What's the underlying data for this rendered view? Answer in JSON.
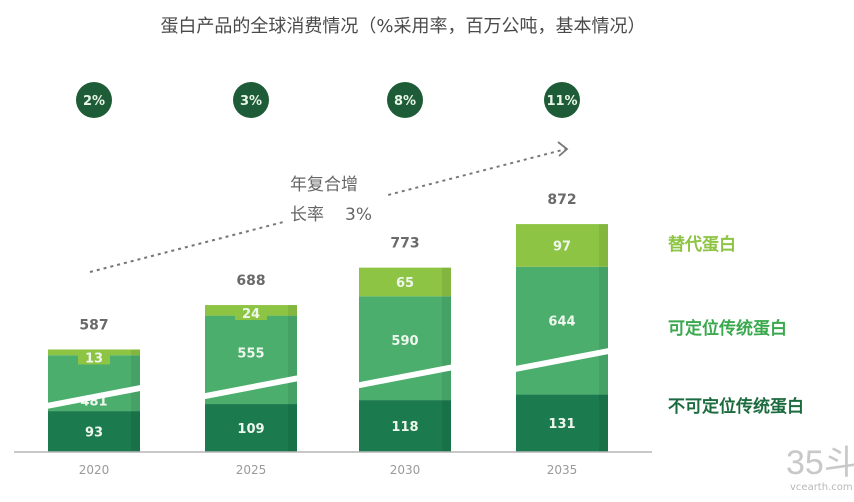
{
  "chart_data": {
    "type": "bar",
    "stacked": true,
    "title": "蛋白产品的全球消费情况（%采用率，百万公吨，基本情况）",
    "categories": [
      "2020",
      "2025",
      "2030",
      "2035"
    ],
    "series": [
      {
        "name": "不可定位传统蛋白",
        "values": [
          93,
          109,
          118,
          131
        ],
        "color": "#1b7a4e"
      },
      {
        "name": "可定位传统蛋白",
        "values": [
          481,
          555,
          590,
          644
        ],
        "color": "#4bae6d"
      },
      {
        "name": "替代蛋白",
        "values": [
          13,
          24,
          65,
          97
        ],
        "color": "#8dc443"
      }
    ],
    "totals": [
      "587",
      "688",
      "773",
      "872"
    ],
    "adoption_rates": [
      "2%",
      "3%",
      "8%",
      "11%"
    ],
    "cagr_annotation": {
      "line1": "年复合增",
      "line2": "长率",
      "value": "3%"
    },
    "axis_break": true,
    "legend": "right",
    "grid": false
  },
  "colors": {
    "bubble": "#1d5c36",
    "legend_alt": "#8dc443",
    "legend_pos": "#3aa94e",
    "legend_nonpos": "#1b6b3f"
  },
  "watermark": {
    "logo": "35斗",
    "site": "vcearth.com"
  }
}
